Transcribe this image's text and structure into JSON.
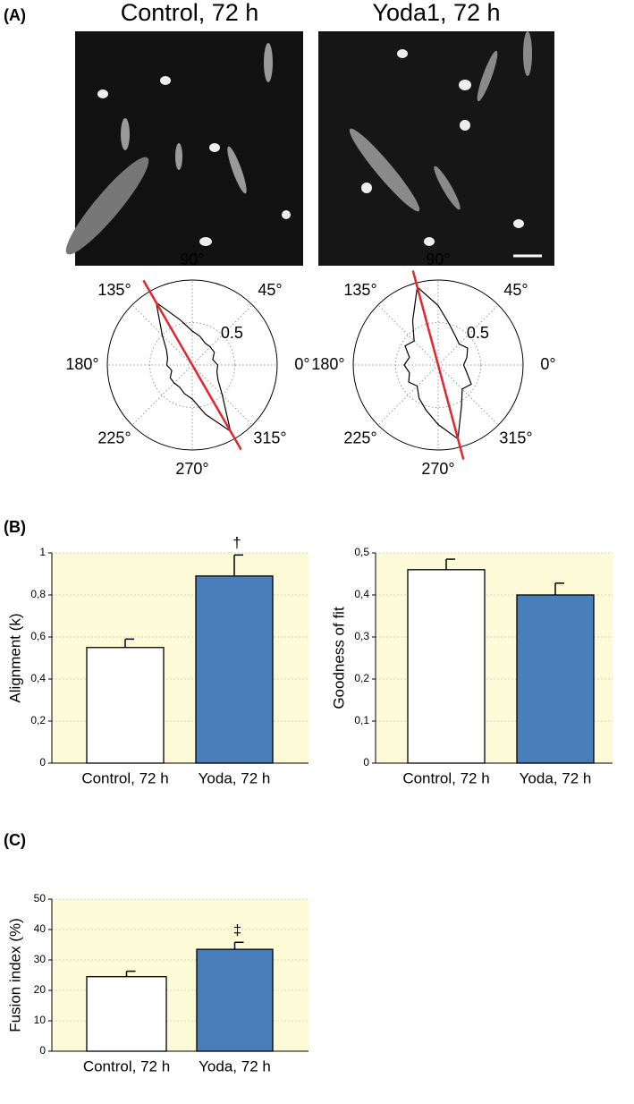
{
  "panel_labels": [
    "(A)",
    "(B)",
    "(C)"
  ],
  "image_titles": [
    "Control, 72 h",
    "Yoda1, 72 h"
  ],
  "chart_data": [
    {
      "type": "polar",
      "theta": [
        0,
        15,
        30,
        45,
        60,
        75,
        90,
        105,
        120,
        135,
        150,
        165,
        180,
        195,
        210,
        225,
        240,
        255,
        270,
        285,
        300,
        315,
        330,
        345
      ],
      "r": [
        0.3,
        0.25,
        0.3,
        0.3,
        0.3,
        0.35,
        0.4,
        0.55,
        0.85,
        0.5,
        0.35,
        0.3,
        0.3,
        0.25,
        0.3,
        0.3,
        0.3,
        0.35,
        0.4,
        0.6,
        0.9,
        0.5,
        0.35,
        0.3
      ],
      "rlim": [
        0,
        1
      ],
      "r_ticks": [
        0.5
      ],
      "theta_ticks": [
        {
          "value": 0,
          "label": "0°"
        },
        {
          "value": 45,
          "label": "45°"
        },
        {
          "value": 90,
          "label": "90°"
        },
        {
          "value": 135,
          "label": "135°"
        },
        {
          "value": 180,
          "label": "180°"
        },
        {
          "value": 225,
          "label": "225°"
        },
        {
          "value": 270,
          "label": "270°"
        },
        {
          "value": 315,
          "label": "315°"
        }
      ],
      "fit_angle": 120,
      "fit_color": "#e3262e",
      "color": "#000000"
    },
    {
      "type": "polar",
      "theta": [
        0,
        15,
        30,
        45,
        60,
        75,
        90,
        105,
        120,
        135,
        150,
        165,
        180,
        195,
        210,
        225,
        240,
        255,
        270,
        285,
        300,
        315,
        330,
        345
      ],
      "r": [
        0.3,
        0.35,
        0.4,
        0.35,
        0.4,
        0.5,
        0.7,
        0.95,
        0.6,
        0.4,
        0.45,
        0.35,
        0.4,
        0.35,
        0.4,
        0.35,
        0.45,
        0.55,
        0.7,
        0.9,
        0.55,
        0.4,
        0.45,
        0.35
      ],
      "rlim": [
        0,
        1
      ],
      "r_ticks": [
        0.5
      ],
      "theta_ticks": [
        {
          "value": 0,
          "label": "0°"
        },
        {
          "value": 45,
          "label": "45°"
        },
        {
          "value": 90,
          "label": "90°"
        },
        {
          "value": 135,
          "label": "135°"
        },
        {
          "value": 180,
          "label": "180°"
        },
        {
          "value": 225,
          "label": "225°"
        },
        {
          "value": 270,
          "label": "270°"
        },
        {
          "value": 315,
          "label": "315°"
        }
      ],
      "fit_angle": 105,
      "fit_color": "#e3262e",
      "color": "#000000"
    },
    {
      "type": "bar",
      "y_label": "Alignment (k)",
      "categories": [
        "Control, 72 h",
        "Yoda, 72 h"
      ],
      "values": [
        0.55,
        0.89
      ],
      "errors": [
        0.04,
        0.1
      ],
      "value_annotations": [
        null,
        "†"
      ],
      "colors": [
        "#ffffff",
        "#4a7ebb"
      ],
      "background": "#fdfbd7",
      "grid": true,
      "ylim": [
        0,
        1
      ],
      "yticks": [
        0,
        {
          "value": 0.2,
          "label": "0,2"
        },
        {
          "value": 0.4,
          "label": "0,4"
        },
        {
          "value": 0.6,
          "label": "0,6"
        },
        {
          "value": 0.8,
          "label": "0,8"
        },
        1
      ]
    },
    {
      "type": "bar",
      "y_label": "Goodness of fit",
      "categories": [
        "Control, 72 h",
        "Yoda, 72 h"
      ],
      "values": [
        0.46,
        0.4
      ],
      "errors": [
        0.025,
        0.028
      ],
      "colors": [
        "#ffffff",
        "#4a7ebb"
      ],
      "background": "#fdfbd7",
      "grid": true,
      "ylim": [
        0,
        0.5
      ],
      "yticks": [
        0,
        {
          "value": 0.1,
          "label": "0,1"
        },
        {
          "value": 0.2,
          "label": "0,2"
        },
        {
          "value": 0.3,
          "label": "0,3"
        },
        {
          "value": 0.4,
          "label": "0,4"
        },
        {
          "value": 0.5,
          "label": "0,5"
        }
      ]
    },
    {
      "type": "bar",
      "y_label": "Fusion index (%)",
      "categories": [
        "Control, 72 h",
        "Yoda, 72 h"
      ],
      "values": [
        24.5,
        33.5
      ],
      "errors": [
        1.8,
        2.3
      ],
      "value_annotations": [
        null,
        "‡"
      ],
      "colors": [
        "#ffffff",
        "#4a7ebb"
      ],
      "background": "#fdfbd7",
      "grid": true,
      "ylim": [
        0,
        50
      ],
      "yticks": [
        0,
        10,
        20,
        30,
        40,
        50
      ]
    }
  ]
}
